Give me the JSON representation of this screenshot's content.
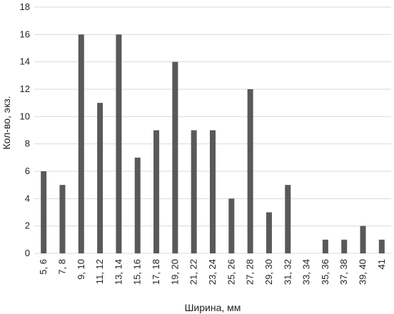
{
  "chart_data": {
    "type": "bar",
    "categories": [
      "5, 6",
      "7, 8",
      "9, 10",
      "11, 12",
      "13, 14",
      "15, 16",
      "17, 18",
      "19, 20",
      "21, 22",
      "23, 24",
      "25, 26",
      "27, 28",
      "29, 30",
      "31, 32",
      "33, 34",
      "35, 36",
      "37, 38",
      "39, 40",
      "41"
    ],
    "values": [
      6,
      5,
      16,
      11,
      16,
      7,
      9,
      14,
      9,
      9,
      4,
      12,
      3,
      5,
      0,
      1,
      1,
      2,
      1
    ],
    "xlabel": "Ширина, мм",
    "ylabel": "Кол-во, экз.",
    "ylim": [
      0,
      18
    ],
    "yticks": [
      0,
      2,
      4,
      6,
      8,
      10,
      12,
      14,
      16,
      18
    ],
    "grid": true,
    "bar_color": "#595959",
    "grid_color": "#d9d9d9"
  }
}
